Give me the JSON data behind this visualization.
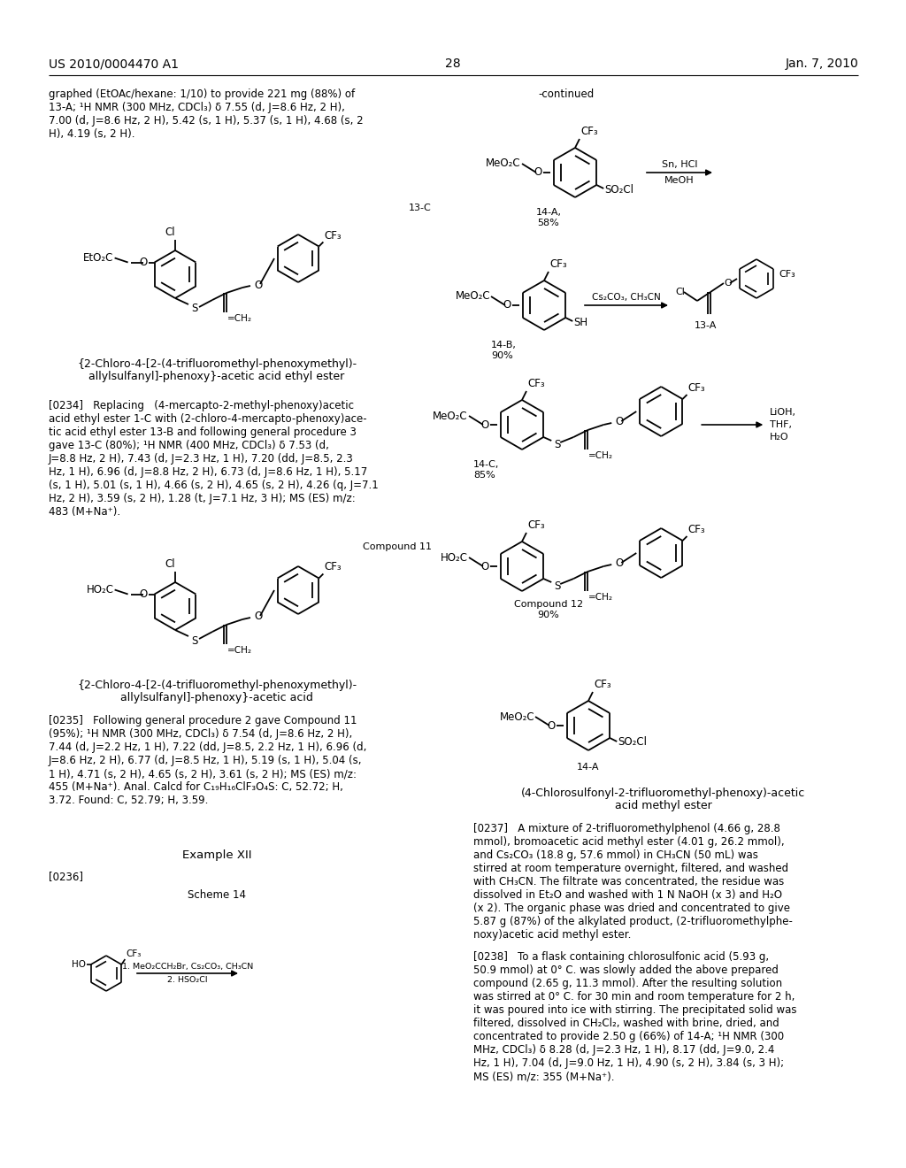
{
  "bg": "#ffffff",
  "header_left": "US 2010/0004470 A1",
  "header_center": "28",
  "header_right": "Jan. 7, 2010",
  "p1": "graphed (EtOAc/hexane: 1/10) to provide 221 mg (88%) of\n13-A; ¹H NMR (300 MHz, CDCl₃) δ 7.55 (d, J=8.6 Hz, 2 H),\n7.00 (d, J=8.6 Hz, 2 H), 5.42 (s, 1 H), 5.37 (s, 1 H), 4.68 (s, 2\nH), 4.19 (s, 2 H).",
  "cap13C_1": "{2-Chloro-4-[2-(4-trifluoromethyl-phenoxymethyl)-",
  "cap13C_2": "allylsulfanyl]-phenoxy}-acetic acid ethyl ester",
  "p234": "[0234]   Replacing   (4-mercapto-2-methyl-phenoxy)acetic\nacid ethyl ester 1-C with (2-chloro-4-mercapto-phenoxy)ace-\ntic acid ethyl ester 13-B and following general procedure 3\ngave 13-C (80%); ¹H NMR (400 MHz, CDCl₃) δ 7.53 (d,\nJ=8.8 Hz, 2 H), 7.43 (d, J=2.3 Hz, 1 H), 7.20 (dd, J=8.5, 2.3\nHz, 1 H), 6.96 (d, J=8.8 Hz, 2 H), 6.73 (d, J=8.6 Hz, 1 H), 5.17\n(s, 1 H), 5.01 (s, 1 H), 4.66 (s, 2 H), 4.65 (s, 2 H), 4.26 (q, J=7.1\nHz, 2 H), 3.59 (s, 2 H), 1.28 (t, J=7.1 Hz, 3 H); MS (ES) m/z:\n483 (M+Na⁺).",
  "cap11_1": "{2-Chloro-4-[2-(4-trifluoromethyl-phenoxymethyl)-",
  "cap11_2": "allylsulfanyl]-phenoxy}-acetic acid",
  "p235": "[0235]   Following general procedure 2 gave Compound 11\n(95%); ¹H NMR (300 MHz, CDCl₃) δ 7.54 (d, J=8.6 Hz, 2 H),\n7.44 (d, J=2.2 Hz, 1 H), 7.22 (dd, J=8.5, 2.2 Hz, 1 H), 6.96 (d,\nJ=8.6 Hz, 2 H), 6.77 (d, J=8.5 Hz, 1 H), 5.19 (s, 1 H), 5.04 (s,\n1 H), 4.71 (s, 2 H), 4.65 (s, 2 H), 3.61 (s, 2 H); MS (ES) m/z:\n455 (M+Na⁺). Anal. Calcd for C₁₉H₁₆ClF₃O₄S: C, 52.72; H,\n3.72. Found: C, 52.79; H, 3.59.",
  "exampleXII": "Example XII",
  "p236": "[0236]",
  "scheme14": "Scheme 14",
  "cap14A_bot_1": "(4-Chlorosulfonyl-2-trifluoromethyl-phenoxy)-acetic",
  "cap14A_bot_2": "acid methyl ester",
  "p237": "[0237]   A mixture of 2-trifluoromethylphenol (4.66 g, 28.8\nmmol), bromoacetic acid methyl ester (4.01 g, 26.2 mmol),\nand Cs₂CO₃ (18.8 g, 57.6 mmol) in CH₃CN (50 mL) was\nstirred at room temperature overnight, filtered, and washed\nwith CH₃CN. The filtrate was concentrated, the residue was\ndissolved in Et₂O and washed with 1 N NaOH (x 3) and H₂O\n(x 2). The organic phase was dried and concentrated to give\n5.87 g (87%) of the alkylated product, (2-trifluoromethylphe-\nnoxy)acetic acid methyl ester.",
  "p238": "[0238]   To a flask containing chlorosulfonic acid (5.93 g,\n50.9 mmol) at 0° C. was slowly added the above prepared\ncompound (2.65 g, 11.3 mmol). After the resulting solution\nwas stirred at 0° C. for 30 min and room temperature for 2 h,\nit was poured into ice with stirring. The precipitated solid was\nfiltered, dissolved in CH₂Cl₂, washed with brine, dried, and\nconcentrated to provide 2.50 g (66%) of 14-A; ¹H NMR (300\nMHz, CDCl₃) δ 8.28 (d, J=2.3 Hz, 1 H), 8.17 (dd, J=9.0, 2.4\nHz, 1 H), 7.04 (d, J=9.0 Hz, 1 H), 4.90 (s, 2 H), 3.84 (s, 3 H);\nMS (ES) m/z: 355 (M+Na⁺)."
}
